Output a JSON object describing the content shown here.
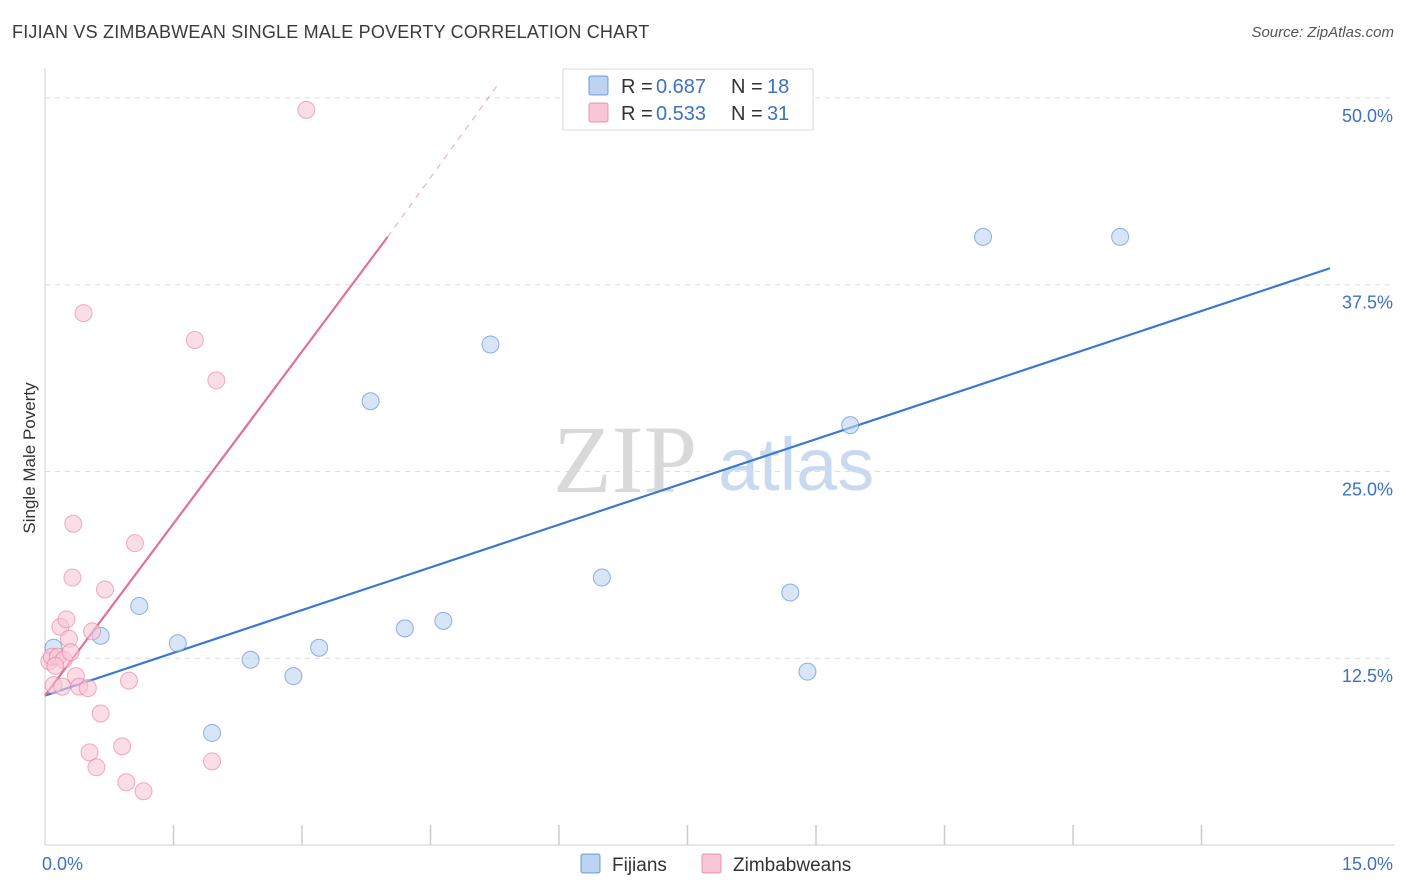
{
  "title": "FIJIAN VS ZIMBABWEAN SINGLE MALE POVERTY CORRELATION CHART",
  "source": "Source: ZipAtlas.com",
  "watermark": {
    "zip": "ZIP",
    "atlas": "atlas"
  },
  "colors": {
    "fijians": "#3b78d4",
    "fijians_fill": "#bcd3f2",
    "zimbabweans": "#e0719a",
    "zimbabweans_fill": "#f8c6d6",
    "tick_label": "#3b72c4",
    "grid": "#dddddd"
  },
  "legend": {
    "rows": [
      {
        "series": "fijians",
        "r_label": "R = ",
        "r_value": "0.687",
        "n_label": "N = ",
        "n_value": "18"
      },
      {
        "series": "zimbabweans",
        "r_label": "R = ",
        "r_value": "0.533",
        "n_label": "N = ",
        "n_value": "31"
      }
    ],
    "bottom": [
      {
        "series": "fijians",
        "label": "Fijians"
      },
      {
        "series": "zimbabweans",
        "label": "Zimbabweans"
      }
    ]
  },
  "chart_data": {
    "type": "scatter",
    "xlabel": "",
    "ylabel": "Single Male Poverty",
    "xlim": [
      0,
      15
    ],
    "ylim": [
      0,
      50
    ],
    "x_tick_labels": [
      {
        "value": 0,
        "label": "0.0%"
      },
      {
        "value": 15,
        "label": "15.0%"
      }
    ],
    "x_minor_ticks": [
      1.5,
      3,
      4.5,
      6,
      7.5,
      9,
      10.5,
      12,
      13.5
    ],
    "y_ticks": [
      {
        "value": 12.5,
        "label": "12.5%"
      },
      {
        "value": 25,
        "label": "25.0%"
      },
      {
        "value": 37.5,
        "label": "37.5%"
      },
      {
        "value": 50,
        "label": "50.0%"
      }
    ],
    "series": [
      {
        "name": "Fijians",
        "key": "fijians",
        "points": [
          {
            "x": 0.1,
            "y": 13.2
          },
          {
            "x": 0.65,
            "y": 14.0
          },
          {
            "x": 1.1,
            "y": 16.0
          },
          {
            "x": 1.55,
            "y": 13.5
          },
          {
            "x": 1.95,
            "y": 7.5
          },
          {
            "x": 2.4,
            "y": 12.4
          },
          {
            "x": 2.9,
            "y": 11.3
          },
          {
            "x": 3.2,
            "y": 13.2
          },
          {
            "x": 3.8,
            "y": 29.7
          },
          {
            "x": 4.2,
            "y": 14.5
          },
          {
            "x": 4.65,
            "y": 15.0
          },
          {
            "x": 5.2,
            "y": 33.5
          },
          {
            "x": 6.5,
            "y": 17.9
          },
          {
            "x": 8.7,
            "y": 16.9
          },
          {
            "x": 8.9,
            "y": 11.6
          },
          {
            "x": 9.4,
            "y": 28.1
          },
          {
            "x": 10.95,
            "y": 40.7
          },
          {
            "x": 12.55,
            "y": 40.7
          }
        ],
        "trend": {
          "x0": 0,
          "y0": 10.0,
          "x1": 15,
          "y1": 38.6,
          "dashed_to_x": null
        }
      },
      {
        "name": "Zimbabweans",
        "key": "zimbabweans",
        "points": [
          {
            "x": 0.05,
            "y": 12.3
          },
          {
            "x": 0.08,
            "y": 12.6
          },
          {
            "x": 0.1,
            "y": 10.7
          },
          {
            "x": 0.15,
            "y": 12.6
          },
          {
            "x": 0.18,
            "y": 14.6
          },
          {
            "x": 0.2,
            "y": 10.6
          },
          {
            "x": 0.22,
            "y": 12.4
          },
          {
            "x": 0.25,
            "y": 15.1
          },
          {
            "x": 0.28,
            "y": 13.8
          },
          {
            "x": 0.3,
            "y": 12.9
          },
          {
            "x": 0.32,
            "y": 17.9
          },
          {
            "x": 0.33,
            "y": 21.5
          },
          {
            "x": 0.36,
            "y": 11.3
          },
          {
            "x": 0.45,
            "y": 35.6
          },
          {
            "x": 0.4,
            "y": 10.6
          },
          {
            "x": 0.5,
            "y": 10.5
          },
          {
            "x": 0.52,
            "y": 6.2
          },
          {
            "x": 0.55,
            "y": 14.3
          },
          {
            "x": 0.6,
            "y": 5.2
          },
          {
            "x": 0.65,
            "y": 8.8
          },
          {
            "x": 0.7,
            "y": 17.1
          },
          {
            "x": 0.9,
            "y": 6.6
          },
          {
            "x": 0.95,
            "y": 4.2
          },
          {
            "x": 0.98,
            "y": 11.0
          },
          {
            "x": 1.05,
            "y": 20.2
          },
          {
            "x": 1.15,
            "y": 3.6
          },
          {
            "x": 1.75,
            "y": 33.8
          },
          {
            "x": 1.95,
            "y": 5.6
          },
          {
            "x": 2.0,
            "y": 31.1
          },
          {
            "x": 3.05,
            "y": 49.2
          },
          {
            "x": 0.12,
            "y": 12.0
          }
        ],
        "trend": {
          "x0": 0,
          "y0": 10.0,
          "x1": 4.0,
          "y1": 40.7,
          "dashed_to_x": 5.3,
          "dashed_to_y": 51.0
        }
      }
    ]
  }
}
